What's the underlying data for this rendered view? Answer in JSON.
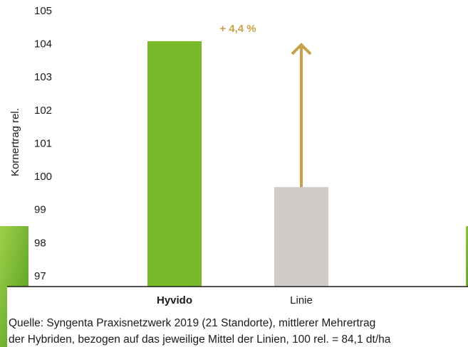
{
  "chart_data": {
    "type": "bar",
    "y_label": "Kornertrag rel.",
    "categories": [
      "Hyvido",
      "Linie"
    ],
    "values": [
      104.4,
      100
    ],
    "colors": [
      "#7ab929",
      "#d0ccc9"
    ],
    "annotation": "+ 4,4 %",
    "annotation_color": "#c9a04a",
    "ylim": [
      97,
      105
    ],
    "yticks": [
      97,
      98,
      99,
      100,
      101,
      102,
      103,
      104,
      105
    ],
    "source": [
      "Quelle: Syngenta Praxisnetzwerk 2019 (21 Standorte), mittlerer Mehrertrag",
      "der Hybriden, bezogen auf das jeweilige Mittel der Linien, 100 rel. = 84,1 dt/ha"
    ]
  }
}
